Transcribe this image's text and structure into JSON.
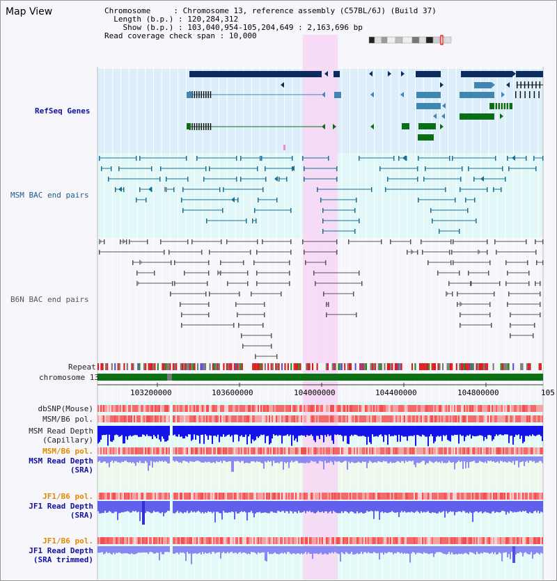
{
  "view_title": "Map View",
  "info": {
    "chromosome_key": "Chromosome",
    "chromosome_val": "Chromosome 13, reference assembly (C57BL/6J) (Build 37)",
    "length_key": "Length (b.p.)",
    "length_val": "120,284,312",
    "show_key": "Show (b.p.)",
    "show_val": "103,040,954-105,204,649 : 2,163,696 bp",
    "span_key": "Read coverage check span",
    "span_val": "10,000"
  },
  "tracks": {
    "refseq": "RefSeq Genes",
    "msm_bac": "MSM BAC end pairs",
    "b6n_bac": "B6N BAC end pairs",
    "repeat": "Repeat",
    "chromosome": "chromosome 13",
    "dbsnp": "dbSNP(Mouse)",
    "msm_b6_pol": "MSM/B6 pol.",
    "msm_depth_cap_1": "MSM Read Depth",
    "msm_depth_cap_2": "(Capillary)",
    "msm_b6_pol_sra": "MSM/B6 pol.",
    "msm_depth_sra_1": "MSM Read Depth",
    "msm_depth_sra_2": "(SRA)",
    "jf1_b6_pol": "JF1/B6 pol.",
    "jf1_depth_1": "JF1 Read Depth",
    "jf1_depth_2": "(SRA)",
    "jf1_b6_pol_trim": "JF1/B6 pol.",
    "jf1_trim_1": "JF1 Read Depth",
    "jf1_trim_2": "(SRA trimmed)"
  },
  "axis_ticks": [
    "103200000",
    "103600000",
    "104000000",
    "104400000",
    "104800000",
    "105"
  ],
  "colors": {
    "refseq_bg": "#dbeefa",
    "bac_bg": "#e2f8f8",
    "highlight": "#f8d6f4",
    "navy": "#0b2a5e",
    "steel": "#3f87b0",
    "green": "#0a6e14",
    "chrom": "#0a7012",
    "depth": "#1414e8",
    "depth_light": "#8a8af0",
    "pol_red": "#f05050",
    "accent_orange": "#e08a00"
  }
}
